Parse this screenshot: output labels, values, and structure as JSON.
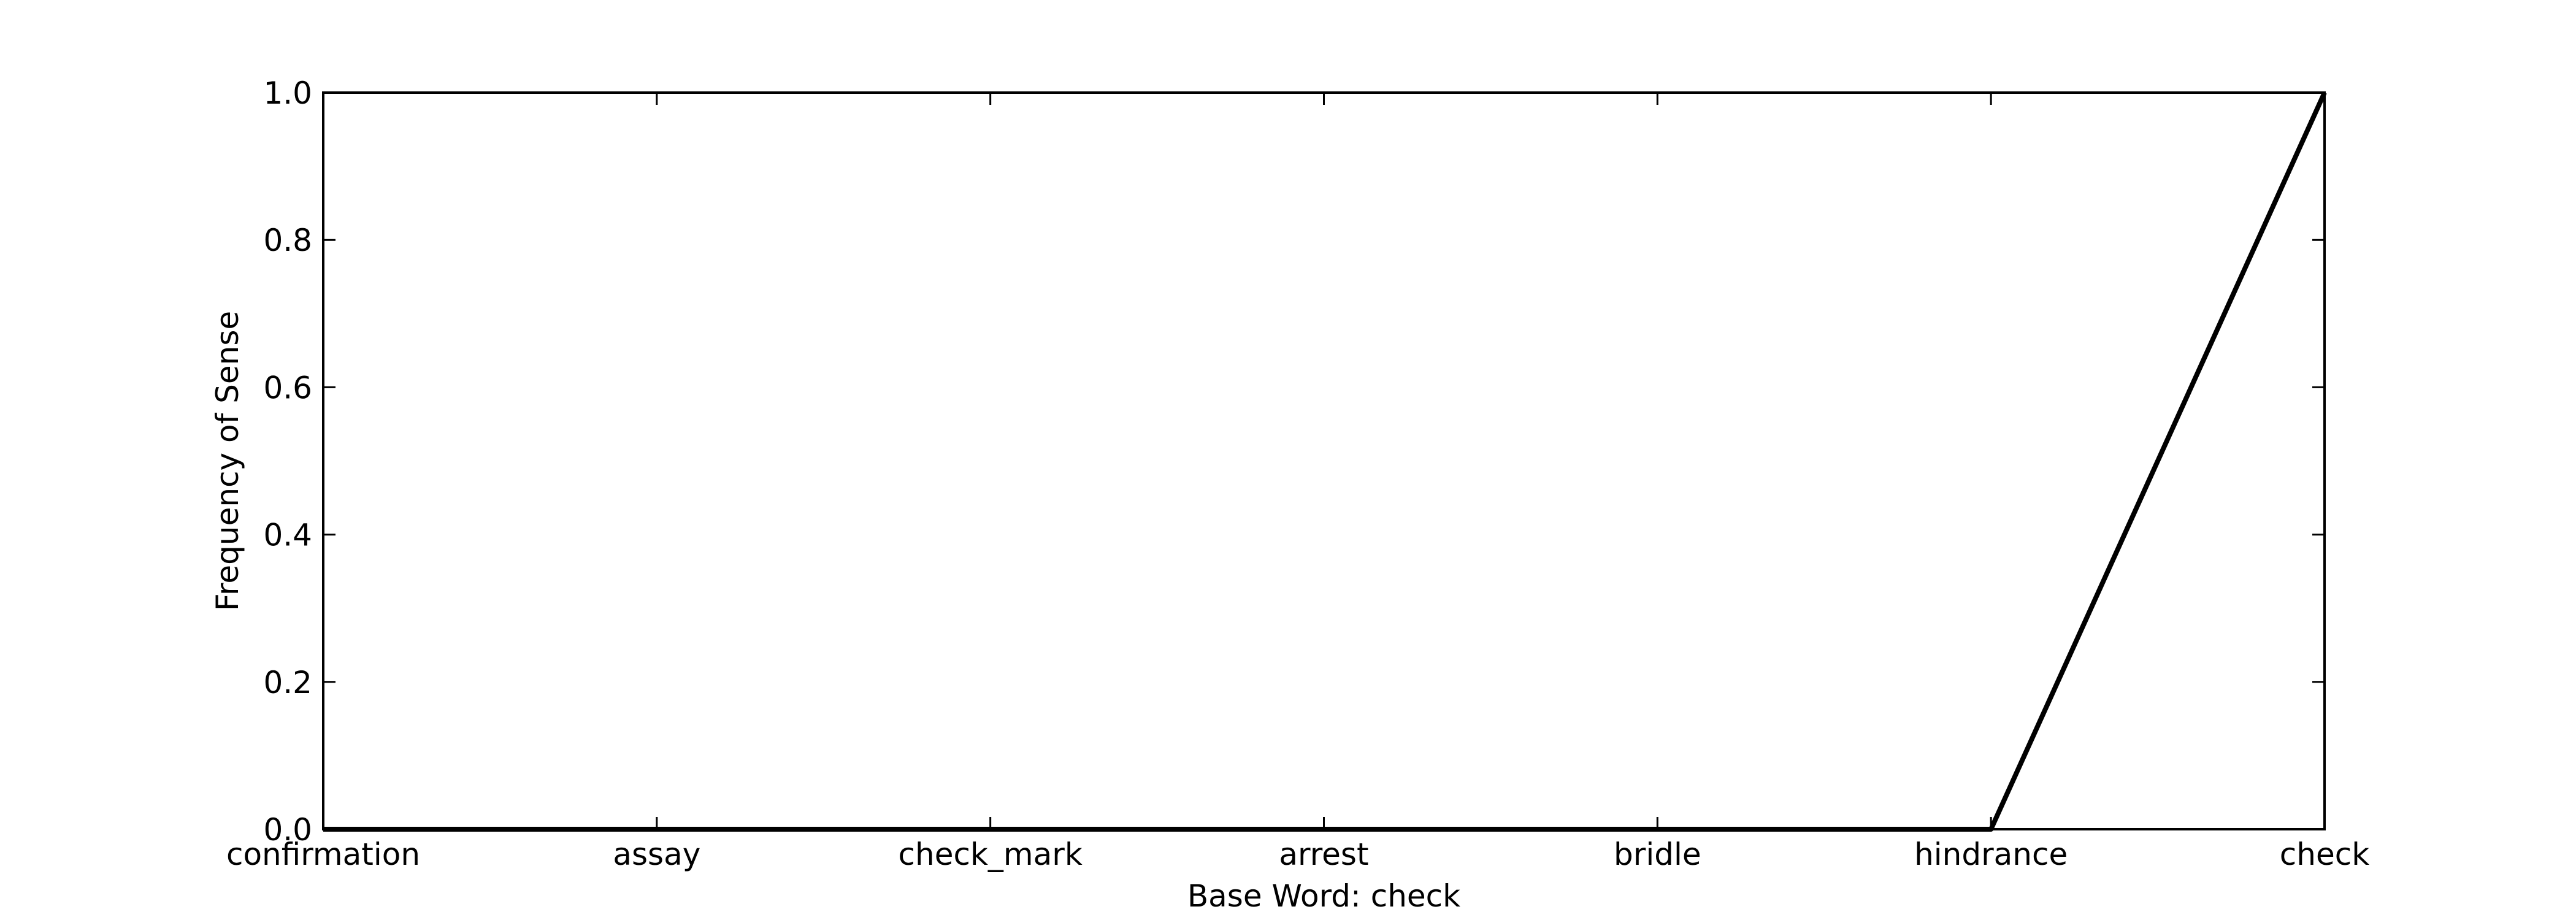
{
  "chart_data": {
    "type": "line",
    "categories": [
      "confirmation",
      "assay",
      "check_mark",
      "arrest",
      "bridle",
      "hindrance",
      "check"
    ],
    "series": [
      {
        "values": [
          0,
          0,
          0,
          0,
          0,
          0,
          1.0
        ]
      }
    ],
    "xlabel": "Base Word: check",
    "ylabel": "Frequency of Sense",
    "ylim": [
      0,
      1.0
    ],
    "yticks": [
      "0.0",
      "0.2",
      "0.4",
      "0.6",
      "0.8",
      "1.0"
    ],
    "grid": false,
    "line_color": "#000000"
  }
}
